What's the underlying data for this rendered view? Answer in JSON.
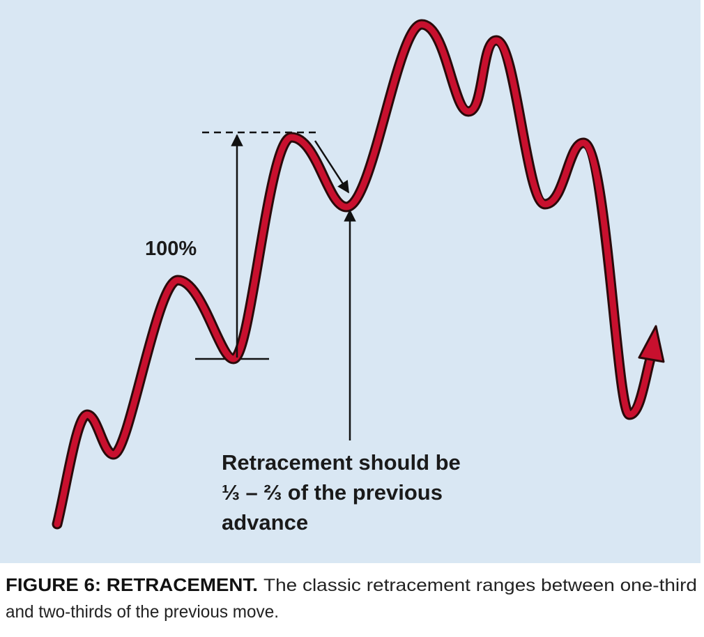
{
  "figure": {
    "annotations": {
      "move_label": "100%",
      "retracement_note": [
        "Retracement should be",
        "⅓ – ⅔ of the previous",
        "advance"
      ]
    }
  },
  "caption": {
    "label": "FIGURE 6: RETRACEMENT.",
    "text": [
      "The classic retracement ranges between one-third",
      "and two-thirds of the previous move."
    ]
  }
}
